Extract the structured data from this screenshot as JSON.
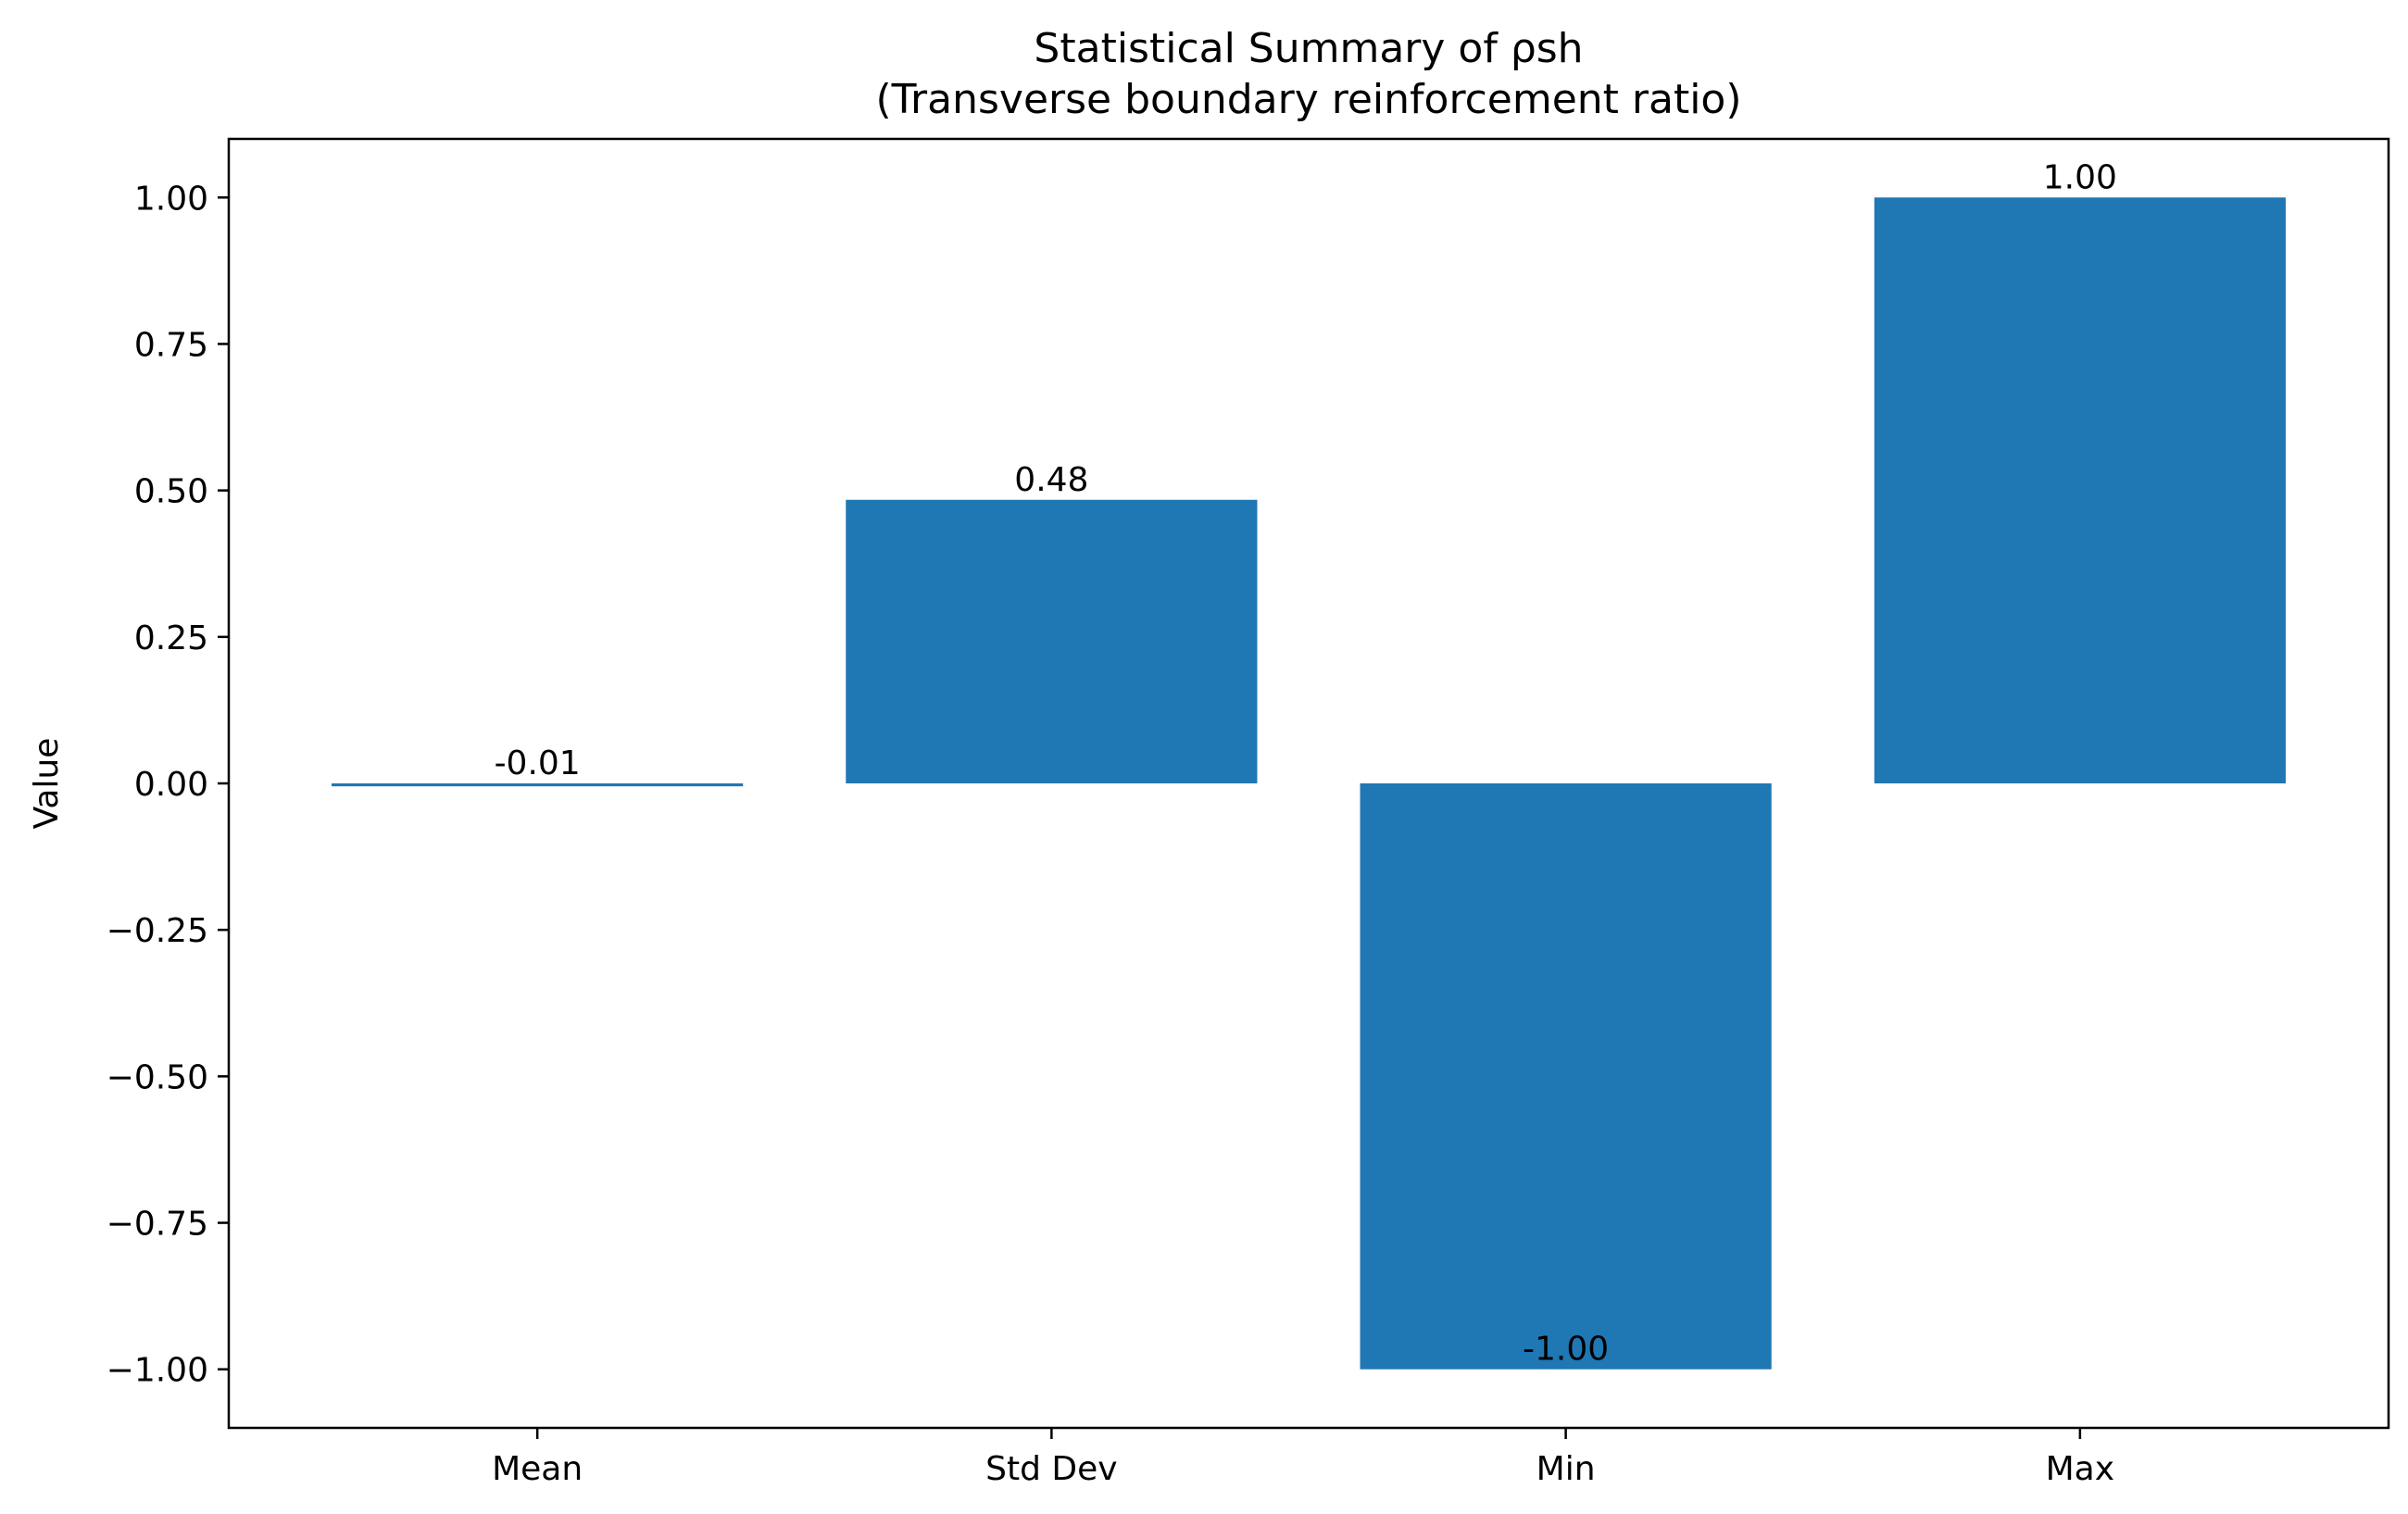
{
  "chart_data": {
    "type": "bar",
    "title": "Statistical Summary of ρsh",
    "subtitle": "(Transverse boundary reinforcement ratio)",
    "xlabel": "",
    "ylabel": "Value",
    "categories": [
      "Mean",
      "Std Dev",
      "Min",
      "Max"
    ],
    "values": [
      -0.005,
      0.484,
      -1.0,
      1.0
    ],
    "data_labels": [
      "-0.01",
      "0.48",
      "-1.00",
      "1.00"
    ],
    "ylim": [
      -1.1,
      1.1
    ],
    "yticks": [
      -1.0,
      -0.75,
      -0.5,
      -0.25,
      0.0,
      0.25,
      0.5,
      0.75,
      1.0
    ],
    "ytick_labels": [
      "−1.00",
      "−0.75",
      "−0.50",
      "−0.25",
      "0.00",
      "0.25",
      "0.50",
      "0.75",
      "1.00"
    ],
    "bar_color": "#1f77b4",
    "grid": false,
    "legend": "none"
  }
}
